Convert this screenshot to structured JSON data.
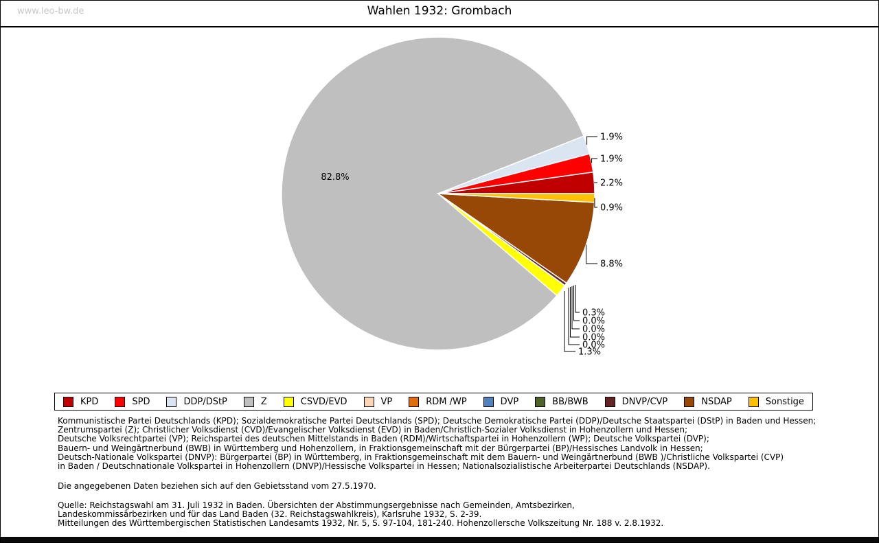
{
  "header": {
    "watermark": "www.leo-bw.de",
    "title": "Wahlen 1932: Grombach"
  },
  "chart_data": {
    "type": "pie",
    "title": "Wahlen 1932: Grombach",
    "unit": "%",
    "start_angle_deg": 0,
    "direction": "counterclockwise",
    "legend_position": "bottom",
    "series": [
      {
        "label": "KPD",
        "value": 2.2,
        "color": "#c00000"
      },
      {
        "label": "SPD",
        "value": 1.9,
        "color": "#ff0000"
      },
      {
        "label": "DDP/DStP",
        "value": 1.9,
        "color": "#dbe5f1"
      },
      {
        "label": "Z",
        "value": 82.8,
        "color": "#bfbfbf"
      },
      {
        "label": "CSVD/EVD",
        "value": 1.3,
        "color": "#ffff00"
      },
      {
        "label": "VP",
        "value": 0.0,
        "color": "#fcd5b4"
      },
      {
        "label": "RDM /WP",
        "value": 0.0,
        "color": "#e36c0a"
      },
      {
        "label": "DVP",
        "value": 0.0,
        "color": "#4f81bd"
      },
      {
        "label": "BB/BWB",
        "value": 0.0,
        "color": "#4f6228"
      },
      {
        "label": "DNVP/CVP",
        "value": 0.3,
        "color": "#632423"
      },
      {
        "label": "NSDAP",
        "value": 8.8,
        "color": "#974806"
      },
      {
        "label": "Sonstige",
        "value": 0.9,
        "color": "#ffc000"
      }
    ]
  },
  "notes": {
    "abbreviations": [
      "Kommunistische Partei Deutschlands (KPD); Sozialdemokratische Partei Deutschlands (SPD); Deutsche Demokratische Partei (DDP)/Deutsche Staatspartei (DStP) in Baden und Hessen;",
      "Zentrumspartei (Z); Christlicher Volksdienst (CVD)/Evangelischer Volksdienst (EVD) in Baden/Christlich-Sozialer Volksdienst in Hohenzollern und Hessen;",
      "Deutsche Volksrechtpartei (VP); Reichspartei des deutschen Mittelstands in Baden (RDM)/Wirtschaftspartei in Hohenzollern (WP); Deutsche Volkspartei (DVP);",
      "Bauern- und Weingärtnerbund (BWB) in Württemberg und Hohenzollern, in Fraktionsgemeinschaft mit der Bürgerpartei (BP)/Hessisches Landvolk in Hessen;",
      "Deutsch-Nationale Volkspartei (DNVP): Bürgerpartei (BP) in Württemberg, in Fraktionsgemeinschaft mit dem Bauern- und Weingärtnerbund (BWB )/Christliche Volkspartei (CVP)",
      "in Baden / Deutschnationale Volkspartei in Hohenzollern (DNVP)/Hessische Volkspartei in Hessen; Nationalsozialistische Arbeiterpartei Deutschlands (NSDAP)."
    ],
    "status": "Die angegebenen Daten beziehen sich auf den Gebietsstand vom 27.5.1970.",
    "source": [
      "Quelle: Reichstagswahl am 31. Juli 1932 in Baden. Übersichten der Abstimmungsergebnisse nach Gemeinden, Amtsbezirken,",
      "Landeskommissärbezirken und für das Land Baden (32. Reichstagswahlkreis), Karlsruhe 1932, S. 2-39.",
      "Mitteilungen des Württembergischen Statistischen Landesamts 1932, Nr. 5, S. 97-104, 181-240. Hohenzollersche Volkszeitung Nr. 188 v. 2.8.1932."
    ]
  }
}
